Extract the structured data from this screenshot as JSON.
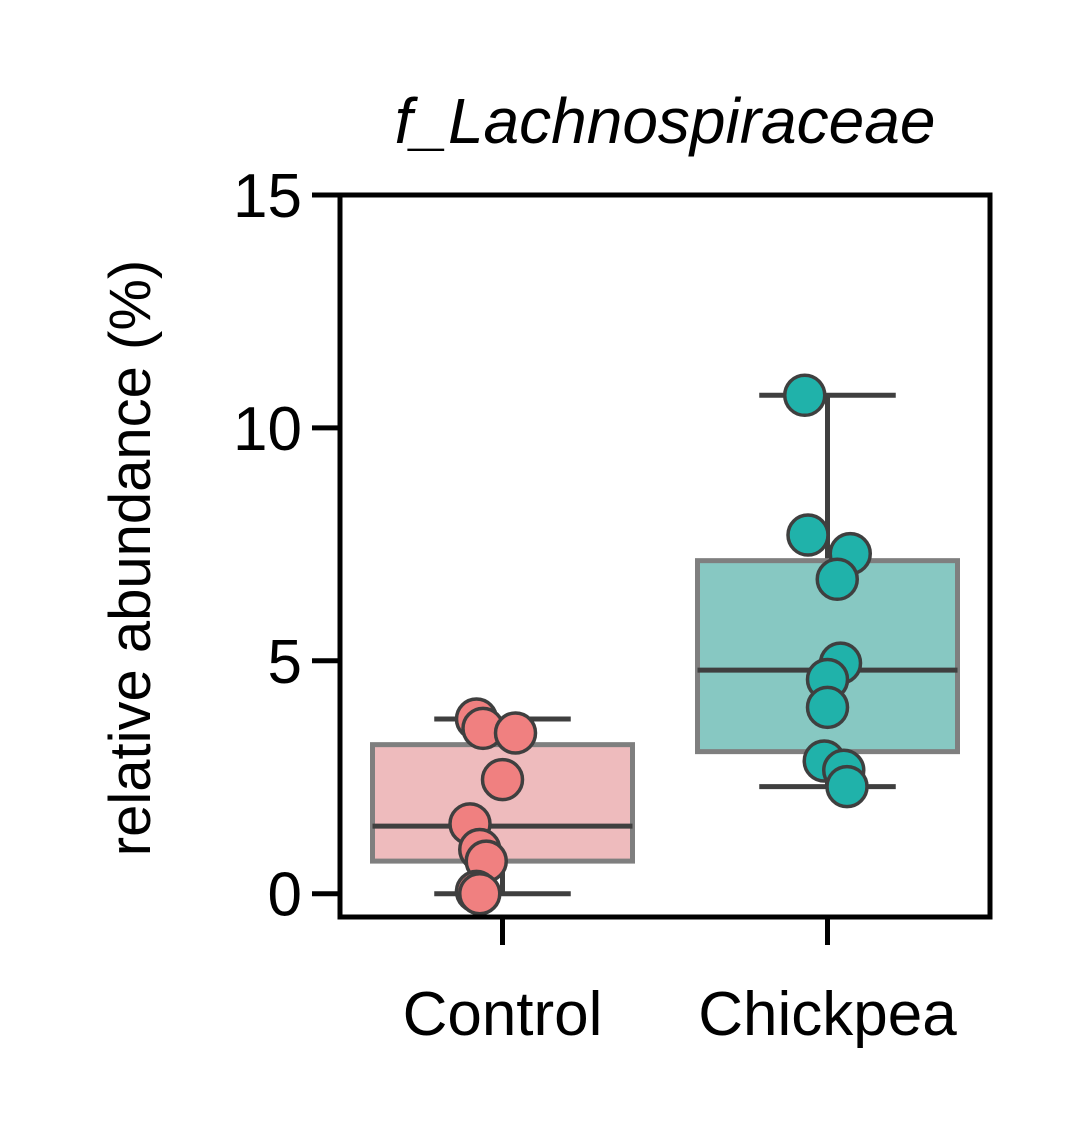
{
  "chart_data": {
    "type": "box",
    "title": "f_Lachnospiraceae",
    "xlabel": "",
    "ylabel": "relative abundance (%)",
    "ylim": [
      -0.5,
      15
    ],
    "yticks": [
      0,
      5,
      10,
      15
    ],
    "categories": [
      "Control",
      "Chickpea"
    ],
    "boxes": [
      {
        "category": "Control",
        "whisker_low": 0.0,
        "q1": 0.7,
        "median": 1.45,
        "q3": 3.2,
        "whisker_high": 3.75,
        "box_color": "#eebbbd",
        "point_color": "#f08080",
        "points": [
          {
            "y": 3.75,
            "jitter": -0.08
          },
          {
            "y": 3.55,
            "jitter": -0.06
          },
          {
            "y": 3.45,
            "jitter": 0.04
          },
          {
            "y": 2.45,
            "jitter": 0.0
          },
          {
            "y": 1.5,
            "jitter": -0.1
          },
          {
            "y": 0.95,
            "jitter": -0.07
          },
          {
            "y": 0.7,
            "jitter": -0.05
          },
          {
            "y": 0.05,
            "jitter": -0.08
          },
          {
            "y": 0.0,
            "jitter": -0.07
          }
        ]
      },
      {
        "category": "Chickpea",
        "whisker_low": 2.3,
        "q1": 3.05,
        "median": 4.8,
        "q3": 7.15,
        "whisker_high": 10.7,
        "box_color": "#87c8c2",
        "point_color": "#20b2aa",
        "points": [
          {
            "y": 10.7,
            "jitter": -0.07
          },
          {
            "y": 7.7,
            "jitter": -0.06
          },
          {
            "y": 7.3,
            "jitter": 0.07
          },
          {
            "y": 6.75,
            "jitter": 0.03
          },
          {
            "y": 4.95,
            "jitter": 0.04
          },
          {
            "y": 4.6,
            "jitter": 0.0
          },
          {
            "y": 4.0,
            "jitter": 0.0
          },
          {
            "y": 2.85,
            "jitter": -0.01
          },
          {
            "y": 2.65,
            "jitter": 0.05
          },
          {
            "y": 2.3,
            "jitter": 0.06
          }
        ]
      }
    ],
    "grid": false,
    "legend": "none"
  }
}
